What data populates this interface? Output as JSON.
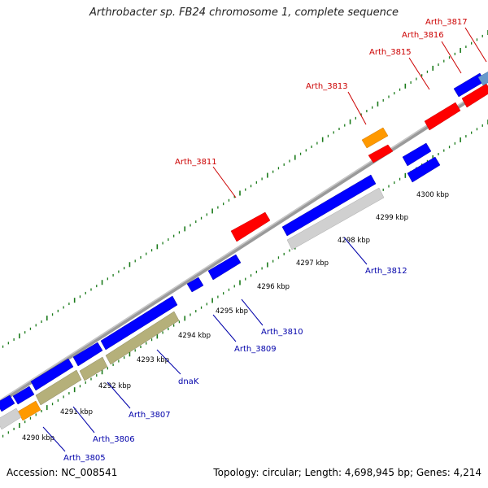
{
  "title": "Arthrobacter sp. FB24 chromosome 1, complete sequence",
  "footer": {
    "accession": "Accession: NC_008541",
    "topology": "Topology: circular; Length: 4,698,945 bp; Genes: 4,214"
  },
  "colors": {
    "forward_gene": "#ff0000",
    "reverse_gene": "#0000ff",
    "orange_gene": "#ff9900",
    "gray_track": "#cfcfcf",
    "khaki_track": "#b5b07a",
    "tick": "#1a7a1a",
    "backbone": "#888888",
    "forward_label": "#cc0000",
    "reverse_label": "#0000aa"
  },
  "ticks": [
    {
      "label": "4290 kbp"
    },
    {
      "label": "4291 kbp"
    },
    {
      "label": "4292 kbp"
    },
    {
      "label": "4293 kbp"
    },
    {
      "label": "4294 kbp"
    },
    {
      "label": "4295 kbp"
    },
    {
      "label": "4296 kbp"
    },
    {
      "label": "4297 kbp"
    },
    {
      "label": "4298 kbp"
    },
    {
      "label": "4299 kbp"
    },
    {
      "label": "4300 kbp"
    }
  ],
  "forward_labels": [
    {
      "label": "Arth_3811"
    },
    {
      "label": "Arth_3813"
    },
    {
      "label": "Arth_3815"
    },
    {
      "label": "Arth_3816"
    },
    {
      "label": "Arth_3817"
    }
  ],
  "reverse_labels": [
    {
      "label": "Arth_3805"
    },
    {
      "label": "Arth_3806"
    },
    {
      "label": "Arth_3807"
    },
    {
      "label": "dnaK"
    },
    {
      "label": "Arth_3809"
    },
    {
      "label": "Arth_3810"
    },
    {
      "label": "Arth_3812"
    }
  ]
}
